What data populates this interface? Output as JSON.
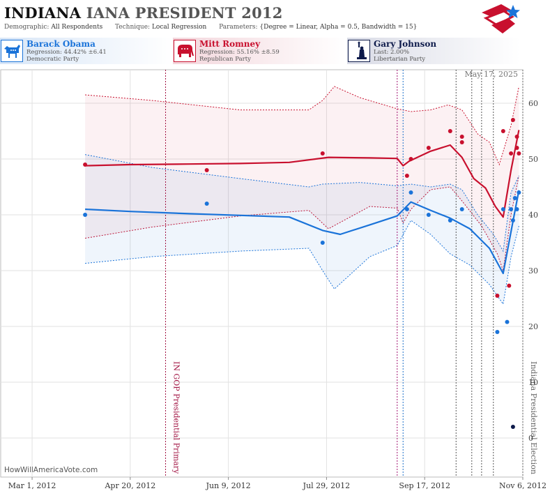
{
  "header": {
    "title_state": "INDIANA",
    "title_race": "IANA PRESIDENT 2012",
    "demographic_label": "Demographic:",
    "demographic_value": "All Respondents",
    "technique_label": "Technique:",
    "technique_value": "Local Regression",
    "parameters_label": "Parameters:",
    "parameters_value": "{Degree = Linear, Alpha = 0.5, Bandwidth = 15}"
  },
  "candidates": [
    {
      "name": "Barack Obama",
      "stat": "Regression: 44.42% ±6.41",
      "party": "Democratic Party",
      "color": "#1a73d9",
      "icon": "donkey-icon"
    },
    {
      "name": "Mitt Romney",
      "stat": "Regression: 55.16% ±8.59",
      "party": "Republican Party",
      "color": "#c8102e",
      "icon": "elephant-icon"
    },
    {
      "name": "Gary Johnson",
      "stat": "Last: 2.00%",
      "party": "Libertarian Party",
      "color": "#0d1a4a",
      "icon": "statue-of-liberty-icon"
    }
  ],
  "footer": {
    "watermark": "HowWillAmericaVote.com",
    "date_stamp": "May 17, 2025"
  },
  "chart_data": {
    "type": "scatter",
    "title": "INDIANA IANA PRESIDENT 2012",
    "xlabel": "",
    "ylabel": "",
    "x_ticks": [
      "Mar 1, 2012",
      "Apr 20, 2012",
      "Jun 9, 2012",
      "Jul 29, 2012",
      "Sep 17, 2012",
      "Nov 6, 2012"
    ],
    "xlim": [
      "2012-02-14",
      "2012-11-06"
    ],
    "ylim": [
      -7,
      66
    ],
    "y_ticks": [
      0,
      10,
      20,
      30,
      40,
      50,
      60
    ],
    "grid": true,
    "y_axis_side": "right",
    "annotations": [
      {
        "label": "IN GOP Presidential Primary",
        "date": "2012-05-08",
        "color": "#a01040"
      },
      {
        "label": "Indiana Presidential Election",
        "date": "2012-11-06",
        "color": "#666666"
      }
    ],
    "event_lines": [
      {
        "date": "2012-09-03",
        "color": "#a01070"
      },
      {
        "date": "2012-09-06",
        "color": "#1a6fc9"
      },
      {
        "date": "2012-10-03",
        "color": "#555555"
      },
      {
        "date": "2012-10-11",
        "color": "#555555"
      },
      {
        "date": "2012-10-16",
        "color": "#555555"
      },
      {
        "date": "2012-10-22",
        "color": "#555555"
      }
    ],
    "series": [
      {
        "name": "Mitt Romney",
        "color": "#c8102e",
        "points": [
          [
            "2012-03-28",
            49
          ],
          [
            "2012-05-29",
            48
          ],
          [
            "2012-07-27",
            51
          ],
          [
            "2012-09-08",
            47
          ],
          [
            "2012-09-10",
            50
          ],
          [
            "2012-09-19",
            52
          ],
          [
            "2012-09-30",
            55
          ],
          [
            "2012-10-06",
            54
          ],
          [
            "2012-10-06",
            53
          ],
          [
            "2012-10-24",
            25.5
          ],
          [
            "2012-10-27",
            55
          ],
          [
            "2012-10-30",
            27.3
          ],
          [
            "2012-10-31",
            51
          ],
          [
            "2012-11-01",
            57
          ],
          [
            "2012-11-03",
            54
          ],
          [
            "2012-11-03",
            52
          ],
          [
            "2012-11-04",
            51
          ]
        ],
        "trend": [
          [
            "2012-03-28",
            48.8
          ],
          [
            "2012-04-20",
            49.0
          ],
          [
            "2012-05-20",
            49.1
          ],
          [
            "2012-06-15",
            49.2
          ],
          [
            "2012-07-10",
            49.4
          ],
          [
            "2012-07-30",
            50.3
          ],
          [
            "2012-08-20",
            50.2
          ],
          [
            "2012-09-03",
            50.1
          ],
          [
            "2012-09-06",
            48.8
          ],
          [
            "2012-09-09",
            49.6
          ],
          [
            "2012-09-20",
            51.4
          ],
          [
            "2012-09-30",
            52.5
          ],
          [
            "2012-10-06",
            50.3
          ],
          [
            "2012-10-12",
            46.5
          ],
          [
            "2012-10-18",
            44.8
          ],
          [
            "2012-10-23",
            41.5
          ],
          [
            "2012-10-27",
            39.6
          ],
          [
            "2012-10-31",
            48.0
          ],
          [
            "2012-11-04",
            55.2
          ]
        ],
        "upper": [
          [
            "2012-03-28",
            61.5
          ],
          [
            "2012-05-01",
            60.5
          ],
          [
            "2012-06-15",
            58.8
          ],
          [
            "2012-07-20",
            58.8
          ],
          [
            "2012-07-27",
            60.5
          ],
          [
            "2012-08-02",
            63.0
          ],
          [
            "2012-08-15",
            61.0
          ],
          [
            "2012-09-03",
            59.0
          ],
          [
            "2012-09-10",
            58.5
          ],
          [
            "2012-09-20",
            58.8
          ],
          [
            "2012-09-29",
            59.7
          ],
          [
            "2012-10-06",
            58.8
          ],
          [
            "2012-10-14",
            54.5
          ],
          [
            "2012-10-20",
            53.0
          ],
          [
            "2012-10-25",
            49.0
          ],
          [
            "2012-10-31",
            56.0
          ],
          [
            "2012-11-04",
            63.0
          ]
        ],
        "lower": [
          [
            "2012-03-28",
            35.8
          ],
          [
            "2012-05-01",
            37.8
          ],
          [
            "2012-06-15",
            39.8
          ],
          [
            "2012-07-20",
            40.8
          ],
          [
            "2012-07-30",
            37.5
          ],
          [
            "2012-08-20",
            41.5
          ],
          [
            "2012-09-03",
            41.2
          ],
          [
            "2012-09-06",
            38.5
          ],
          [
            "2012-09-10",
            41.0
          ],
          [
            "2012-09-20",
            44.5
          ],
          [
            "2012-09-30",
            45.0
          ],
          [
            "2012-10-06",
            42.5
          ],
          [
            "2012-10-16",
            38.0
          ],
          [
            "2012-10-24",
            33.0
          ],
          [
            "2012-10-27",
            30.0
          ],
          [
            "2012-10-31",
            40.0
          ],
          [
            "2012-11-04",
            47.0
          ]
        ]
      },
      {
        "name": "Barack Obama",
        "color": "#1a73d9",
        "points": [
          [
            "2012-03-28",
            40
          ],
          [
            "2012-05-29",
            42
          ],
          [
            "2012-07-27",
            35
          ],
          [
            "2012-09-08",
            41
          ],
          [
            "2012-09-10",
            44
          ],
          [
            "2012-09-19",
            40
          ],
          [
            "2012-09-30",
            39
          ],
          [
            "2012-10-06",
            41
          ],
          [
            "2012-10-24",
            19
          ],
          [
            "2012-10-27",
            41
          ],
          [
            "2012-10-29",
            20.8
          ],
          [
            "2012-10-31",
            41
          ],
          [
            "2012-11-01",
            39
          ],
          [
            "2012-11-02",
            43
          ],
          [
            "2012-11-03",
            41
          ],
          [
            "2012-11-04",
            44
          ]
        ],
        "trend": [
          [
            "2012-03-28",
            41.0
          ],
          [
            "2012-04-20",
            40.6
          ],
          [
            "2012-05-20",
            40.2
          ],
          [
            "2012-06-15",
            39.9
          ],
          [
            "2012-07-10",
            39.6
          ],
          [
            "2012-07-27",
            37.2
          ],
          [
            "2012-08-05",
            36.5
          ],
          [
            "2012-08-20",
            38.2
          ],
          [
            "2012-09-03",
            39.8
          ],
          [
            "2012-09-10",
            42.3
          ],
          [
            "2012-09-20",
            40.8
          ],
          [
            "2012-09-30",
            39.4
          ],
          [
            "2012-10-10",
            37.5
          ],
          [
            "2012-10-20",
            34.0
          ],
          [
            "2012-10-27",
            29.5
          ],
          [
            "2012-10-31",
            37.0
          ],
          [
            "2012-11-04",
            44.4
          ]
        ],
        "upper": [
          [
            "2012-03-28",
            50.8
          ],
          [
            "2012-05-01",
            48.5
          ],
          [
            "2012-06-15",
            46.5
          ],
          [
            "2012-07-20",
            45.0
          ],
          [
            "2012-07-27",
            45.5
          ],
          [
            "2012-08-15",
            45.8
          ],
          [
            "2012-09-03",
            45.2
          ],
          [
            "2012-09-10",
            45.5
          ],
          [
            "2012-09-20",
            45.0
          ],
          [
            "2012-09-30",
            45.5
          ],
          [
            "2012-10-06",
            44.5
          ],
          [
            "2012-10-14",
            40.0
          ],
          [
            "2012-10-22",
            36.5
          ],
          [
            "2012-10-27",
            33.5
          ],
          [
            "2012-10-31",
            44.0
          ],
          [
            "2012-11-04",
            47.0
          ]
        ],
        "lower": [
          [
            "2012-03-28",
            31.3
          ],
          [
            "2012-05-01",
            32.5
          ],
          [
            "2012-06-15",
            33.5
          ],
          [
            "2012-07-20",
            34.0
          ],
          [
            "2012-07-27",
            30.0
          ],
          [
            "2012-08-02",
            26.7
          ],
          [
            "2012-08-20",
            32.5
          ],
          [
            "2012-09-03",
            34.5
          ],
          [
            "2012-09-10",
            39.0
          ],
          [
            "2012-09-20",
            36.5
          ],
          [
            "2012-09-30",
            33.0
          ],
          [
            "2012-10-10",
            31.0
          ],
          [
            "2012-10-20",
            27.5
          ],
          [
            "2012-10-27",
            24.0
          ],
          [
            "2012-10-31",
            32.5
          ],
          [
            "2012-11-04",
            38.0
          ]
        ]
      },
      {
        "name": "Gary Johnson",
        "color": "#0d1a4a",
        "points": [
          [
            "2012-11-01",
            2
          ]
        ]
      }
    ]
  }
}
